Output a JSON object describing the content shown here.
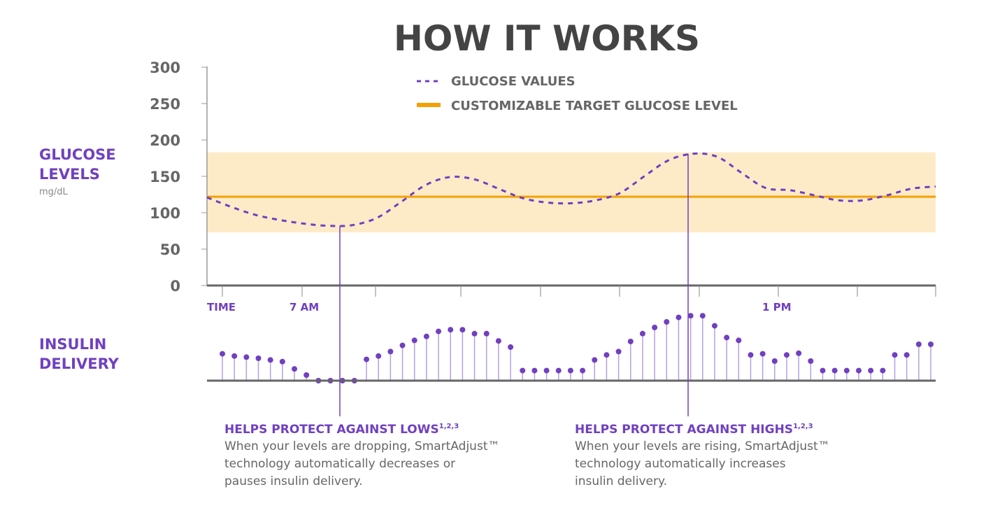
{
  "title": "HOW IT WORKS",
  "colors": {
    "purple": "#7040c0",
    "orange": "#f5a000",
    "target_band": "#fdebc8",
    "axis": "#666666",
    "text_gray": "#666666"
  },
  "glucose_panel": {
    "label_line1": "GLUCOSE",
    "label_line2": "LEVELS",
    "unit": "mg/dL"
  },
  "insulin_panel": {
    "label_line1": "INSULIN",
    "label_line2": "DELIVERY"
  },
  "legend": {
    "glucose_values": "GLUCOSE VALUES",
    "target_level": "CUSTOMIZABLE TARGET GLUCOSE LEVEL"
  },
  "notes": {
    "lows": {
      "heading": "HELPS PROTECT AGAINST LOWS",
      "sup": "1,2,3",
      "line1": "When your levels are dropping, SmartAdjust™",
      "line2": "technology automatically decreases or",
      "line3": "pauses insulin delivery."
    },
    "highs": {
      "heading": "HELPS PROTECT AGAINST HIGHS",
      "sup": "1,2,3",
      "line1": "When your levels are rising, SmartAdjust™",
      "line2": "technology automatically increases",
      "line3": "insulin delivery."
    }
  },
  "chart_data": {
    "type": "line",
    "ylim": [
      0,
      300
    ],
    "yticks": [
      0,
      50,
      100,
      150,
      200,
      250,
      300
    ],
    "ylabel": "GLUCOSE LEVELS mg/dL",
    "x_labels": [
      "TIME",
      "7 AM",
      "1 PM"
    ],
    "target_range": [
      73,
      183
    ],
    "target_level": 122,
    "series": [
      {
        "name": "GLUCOSE VALUES",
        "style": "dashed",
        "values": [
          121,
          108,
          97,
          90,
          85,
          82,
          83,
          93,
          115,
          138,
          149,
          146,
          133,
          120,
          114,
          113,
          117,
          127,
          150,
          172,
          181,
          177,
          155,
          134,
          131,
          124,
          117,
          117,
          124,
          133,
          136
        ]
      },
      {
        "name": "CUSTOMIZABLE TARGET GLUCOSE LEVEL",
        "style": "solid",
        "values": [
          122,
          122
        ]
      }
    ],
    "insulin_delivery": [
      0.48,
      0.44,
      0.42,
      0.4,
      0.37,
      0.34,
      0.21,
      0.1,
      0,
      0,
      0,
      0,
      0.38,
      0.44,
      0.52,
      0.63,
      0.72,
      0.79,
      0.88,
      0.91,
      0.91,
      0.84,
      0.84,
      0.71,
      0.6,
      0.18,
      0.18,
      0.18,
      0.18,
      0.18,
      0.18,
      0.37,
      0.46,
      0.52,
      0.7,
      0.84,
      0.95,
      1.05,
      1.13,
      1.16,
      1.16,
      0.98,
      0.77,
      0.72,
      0.46,
      0.48,
      0.35,
      0.46,
      0.49,
      0.35,
      0.18,
      0.18,
      0.18,
      0.18,
      0.18,
      0.18,
      0.46,
      0.46,
      0.65,
      0.65
    ]
  }
}
